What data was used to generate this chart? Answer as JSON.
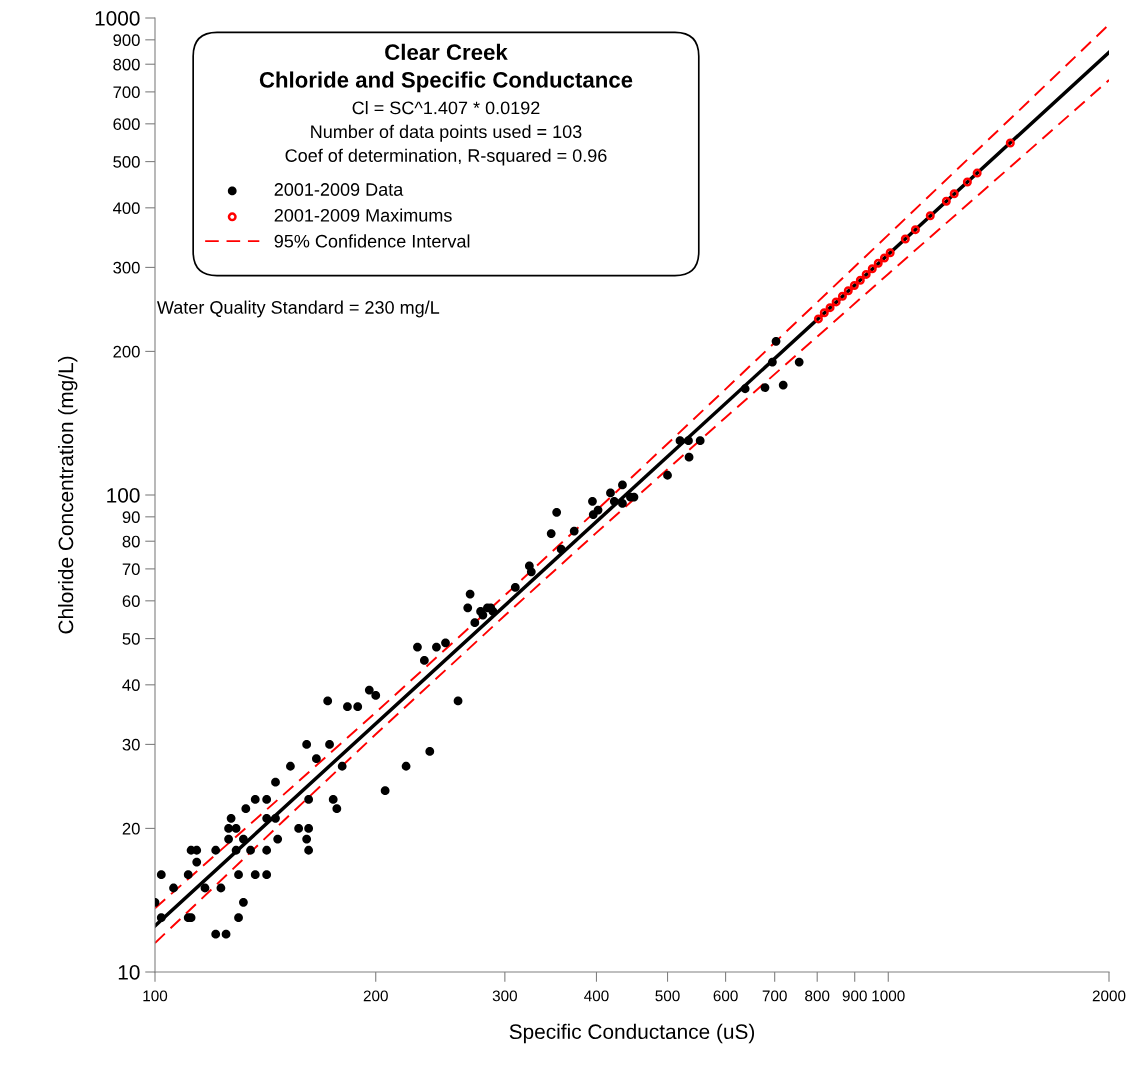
{
  "chart_data": {
    "type": "scatter",
    "title": "Clear Creek",
    "subtitle": "Chloride and Specific Conductance",
    "xlabel": "Specific Conductance (uS)",
    "ylabel": "Chloride Concentration (mg/L)",
    "annotations": [
      "Cl = SC^1.407 * 0.0192",
      "Number of data points used = 103",
      "Coef of determination, R-squared = 0.96",
      "Water Quality Standard = 230 mg/L"
    ],
    "log": "xy",
    "xlim": [
      100,
      2000
    ],
    "ylim": [
      10,
      1000
    ],
    "xticks": [
      100,
      200,
      300,
      400,
      500,
      600,
      700,
      800,
      900,
      1000,
      2000
    ],
    "yticks": [
      10,
      20,
      30,
      40,
      50,
      60,
      70,
      80,
      90,
      100,
      200,
      300,
      400,
      500,
      600,
      700,
      800,
      900,
      1000
    ],
    "grid": false,
    "legend": "top left",
    "series": [
      {
        "name": "2001-2009 Data",
        "marker": "circle",
        "color": "#000000",
        "x": [
          100,
          102,
          102,
          106,
          111,
          112,
          111,
          112,
          114,
          114,
          117,
          121,
          121,
          123,
          125,
          126,
          126,
          127,
          129,
          129,
          130,
          130,
          132,
          132,
          133,
          135,
          137,
          137,
          142,
          142,
          142,
          142,
          146,
          146,
          147,
          153,
          157,
          161,
          161,
          162,
          162,
          162,
          166,
          172,
          173,
          175,
          177,
          180,
          183,
          189,
          196,
          200,
          206,
          220,
          228,
          233,
          237,
          242,
          249,
          259,
          269,
          267,
          273,
          278,
          280,
          284,
          287,
          289,
          310,
          324,
          326,
          347,
          353,
          358,
          373,
          395,
          396,
          402,
          418,
          423,
          434,
          434,
          445,
          450,
          500,
          520,
          534,
          535,
          554,
          638,
          679,
          719,
          695,
          703,
          756
        ],
        "values": [
          14,
          16,
          13,
          15,
          16,
          18,
          13,
          13,
          17,
          18,
          15,
          18,
          12,
          15,
          12,
          20,
          19,
          21,
          18,
          20,
          16,
          13,
          19,
          14,
          22,
          18,
          23,
          16,
          16,
          23,
          21,
          18,
          25,
          21,
          19,
          27,
          20,
          19,
          30,
          23,
          20,
          18,
          28,
          37,
          30,
          23,
          22,
          27,
          36,
          36,
          39,
          38,
          24,
          27,
          48,
          45,
          29,
          48,
          49,
          37,
          62,
          58,
          54,
          57,
          56,
          58,
          58,
          57,
          64,
          71,
          69,
          83,
          92,
          77,
          84,
          97,
          91,
          93,
          101,
          97,
          105,
          96,
          99,
          99,
          110,
          130,
          130,
          120,
          130,
          167,
          168,
          170,
          190,
          210,
          190
        ]
      },
      {
        "name": "2001-2009 Maximums",
        "marker": "circle",
        "color": "#ff0000",
        "x": [
          803,
          818,
          833,
          849,
          866,
          882,
          899,
          916,
          933,
          951,
          969,
          988,
          1006,
          1055,
          1089,
          1141,
          1200,
          1230,
          1282,
          1322,
          1467
        ],
        "values": [
          234,
          241,
          247,
          254,
          261,
          268,
          275,
          282,
          290,
          298,
          306,
          314,
          322,
          344,
          360,
          385,
          413,
          428,
          453,
          473,
          547
        ]
      },
      {
        "type": "line",
        "color": "#000000",
        "line_style": "solid",
        "x": [
          100,
          2000
        ],
        "values": [
          12.5,
          847
        ]
      },
      {
        "name": "95% Confidence Interval",
        "type": "line",
        "color": "#ff0000",
        "line_style": "dashed",
        "x": [
          100,
          150,
          200,
          300,
          400,
          600,
          1000,
          1500,
          2000
        ],
        "values": [
          13.6,
          23.6,
          35.0,
          61.6,
          92.8,
          166.7,
          351,
          635,
          969
        ]
      },
      {
        "type": "line",
        "color": "#ff0000",
        "line_style": "dashed",
        "x": [
          100,
          150,
          200,
          300,
          400,
          600,
          1000,
          1500,
          2000
        ],
        "values": [
          11.5,
          20.8,
          31.5,
          55.9,
          83.4,
          145.4,
          290.7,
          502,
          741
        ]
      }
    ]
  }
}
